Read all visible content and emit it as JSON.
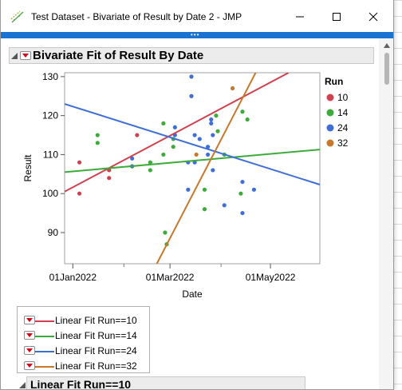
{
  "window": {
    "title": "Test Dataset - Bivariate of Result by Date 2 - JMP",
    "controls": {
      "minimize": "minimize-icon",
      "maximize": "maximize-icon",
      "close": "close-icon"
    },
    "accent_color": "#1a73d1"
  },
  "report": {
    "title": "Bivariate Fit of Result By Date",
    "sub_section_title": "Linear Fit Run==10"
  },
  "chart_data": {
    "type": "scatter",
    "xlabel": "Date",
    "ylabel": "Result",
    "x_ticks": [
      "01Jan2022",
      "01Mar2022",
      "01May2022"
    ],
    "y_ticks": [
      "90",
      "100",
      "110",
      "120",
      "130"
    ],
    "xlim": [
      "2021-12-27",
      "2022-05-31"
    ],
    "ylim": [
      82,
      131
    ],
    "legend_title": "Run",
    "legend_position": "right",
    "series": [
      {
        "name": "10",
        "color": "#d0414f",
        "points": [
          [
            "2022-01-05",
            108
          ],
          [
            "2022-01-05",
            100
          ],
          [
            "2022-01-23",
            106
          ],
          [
            "2022-01-23",
            104
          ],
          [
            "2022-02-09",
            115
          ]
        ],
        "fit": [
          [
            "2021-12-27",
            100.5
          ],
          [
            "2022-05-12",
            131.0
          ]
        ]
      },
      {
        "name": "14",
        "color": "#3dab3a",
        "points": [
          [
            "2022-01-16",
            115
          ],
          [
            "2022-01-16",
            113
          ],
          [
            "2022-02-06",
            107
          ],
          [
            "2022-02-17",
            108
          ],
          [
            "2022-02-17",
            106
          ],
          [
            "2022-02-25",
            110
          ],
          [
            "2022-02-25",
            118
          ],
          [
            "2022-02-26",
            90
          ],
          [
            "2022-02-27",
            87
          ],
          [
            "2022-03-03",
            114
          ],
          [
            "2022-03-03",
            112
          ],
          [
            "2022-03-22",
            101
          ],
          [
            "2022-03-22",
            96
          ],
          [
            "2022-03-29",
            120
          ],
          [
            "2022-03-30",
            116
          ],
          [
            "2022-04-03",
            110
          ],
          [
            "2022-04-14",
            121
          ],
          [
            "2022-04-17",
            119
          ],
          [
            "2022-04-13",
            100
          ]
        ],
        "fit": [
          [
            "2021-12-27",
            105.5
          ],
          [
            "2022-05-31",
            111.3
          ]
        ]
      },
      {
        "name": "24",
        "color": "#3f6fd6",
        "points": [
          [
            "2022-02-06",
            107
          ],
          [
            "2022-02-06",
            109
          ],
          [
            "2022-03-04",
            115
          ],
          [
            "2022-03-04",
            117
          ],
          [
            "2022-03-12",
            108
          ],
          [
            "2022-03-12",
            101
          ],
          [
            "2022-03-14",
            130
          ],
          [
            "2022-03-14",
            125
          ],
          [
            "2022-03-16",
            108
          ],
          [
            "2022-03-16",
            115
          ],
          [
            "2022-03-19",
            114
          ],
          [
            "2022-03-24",
            112
          ],
          [
            "2022-03-24",
            110
          ],
          [
            "2022-03-26",
            118
          ],
          [
            "2022-03-26",
            119
          ],
          [
            "2022-03-27",
            106
          ],
          [
            "2022-03-27",
            115
          ],
          [
            "2022-04-03",
            97
          ],
          [
            "2022-04-14",
            103
          ],
          [
            "2022-04-14",
            95
          ],
          [
            "2022-04-21",
            101
          ]
        ],
        "fit": [
          [
            "2021-12-27",
            123.0
          ],
          [
            "2022-05-31",
            102.3
          ]
        ]
      },
      {
        "name": "32",
        "color": "#c8782a",
        "points": [
          [
            "2022-03-17",
            110
          ],
          [
            "2022-04-08",
            127
          ]
        ],
        "fit": [
          [
            "2022-02-21",
            82.0
          ],
          [
            "2022-04-22",
            131.0
          ]
        ]
      }
    ]
  },
  "fit_legend": [
    {
      "label": "Linear Fit Run==10",
      "color": "#d0414f"
    },
    {
      "label": "Linear Fit Run==14",
      "color": "#3dab3a"
    },
    {
      "label": "Linear Fit Run==24",
      "color": "#3f6fd6"
    },
    {
      "label": "Linear Fit Run==32",
      "color": "#c8782a"
    }
  ]
}
